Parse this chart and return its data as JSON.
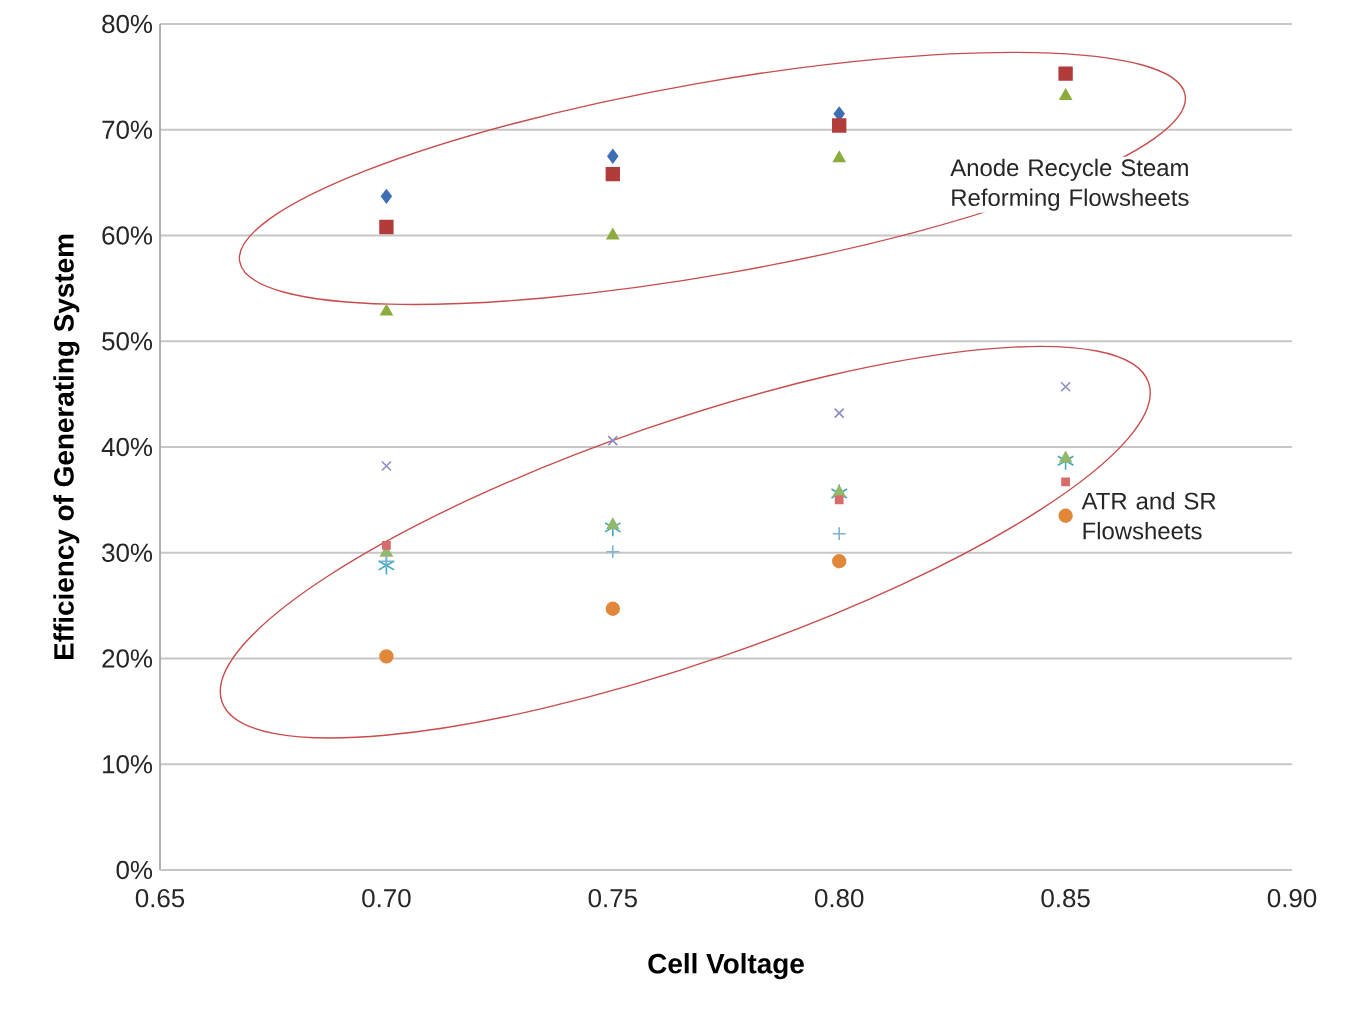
{
  "chart_data": {
    "type": "scatter",
    "xlabel": "Cell Voltage",
    "ylabel": "Efficiency of Generating System",
    "x": [
      0.7,
      0.75,
      0.8,
      0.85
    ],
    "series": [
      {
        "color": "#3e6eb4",
        "marker": "diamond",
        "values": [
          63.7,
          67.5,
          71.5,
          null
        ]
      },
      {
        "color": "#b23b3b",
        "marker": "square",
        "values": [
          60.8,
          65.8,
          70.4,
          75.3
        ]
      },
      {
        "color": "#8bac3d",
        "marker": "triangle",
        "values": [
          52.8,
          60.0,
          67.3,
          73.2
        ]
      },
      {
        "color": "#8a8ec2",
        "marker": "cross",
        "values": [
          38.2,
          40.6,
          43.2,
          45.7
        ]
      },
      {
        "color": "#3ea7c6",
        "marker": "cross",
        "values": [
          28.8,
          32.4,
          35.6,
          38.7
        ]
      },
      {
        "color": "#92b86a",
        "marker": "triangle",
        "values": [
          30.0,
          32.6,
          35.7,
          38.9
        ]
      },
      {
        "color": "#d96b6b",
        "marker": "square",
        "values": [
          30.7,
          null,
          35.0,
          36.7
        ]
      },
      {
        "color": "#e0873a",
        "marker": "circle",
        "values": [
          20.2,
          24.7,
          29.2,
          33.5
        ]
      },
      {
        "color": "#7fb2d2",
        "marker": "plus",
        "values": [
          29.2,
          30.1,
          31.8,
          null
        ]
      }
    ],
    "xlim": [
      0.65,
      0.9
    ],
    "xticks": [
      {
        "value": 0.65,
        "label": "0.65"
      },
      {
        "value": 0.7,
        "label": "0.70"
      },
      {
        "value": 0.75,
        "label": "0.75"
      },
      {
        "value": 0.8,
        "label": "0.80"
      },
      {
        "value": 0.85,
        "label": "0.85"
      },
      {
        "value": 0.9,
        "label": "0.90"
      }
    ],
    "ylim": [
      0,
      80
    ],
    "yticks": [
      {
        "value": 0,
        "label": "0%"
      },
      {
        "value": 10,
        "label": "10%"
      },
      {
        "value": 20,
        "label": "20%"
      },
      {
        "value": 30,
        "label": "30%"
      },
      {
        "value": 40,
        "label": "40%"
      },
      {
        "value": 50,
        "label": "50%"
      },
      {
        "value": 60,
        "label": "60%"
      },
      {
        "value": 70,
        "label": "70%"
      },
      {
        "value": 80,
        "label": "80%"
      }
    ],
    "grid": "y",
    "annotations": [
      "Anode Recycle Steam Reforming Flowsheets",
      "ATR and SR Flowsheets"
    ]
  }
}
